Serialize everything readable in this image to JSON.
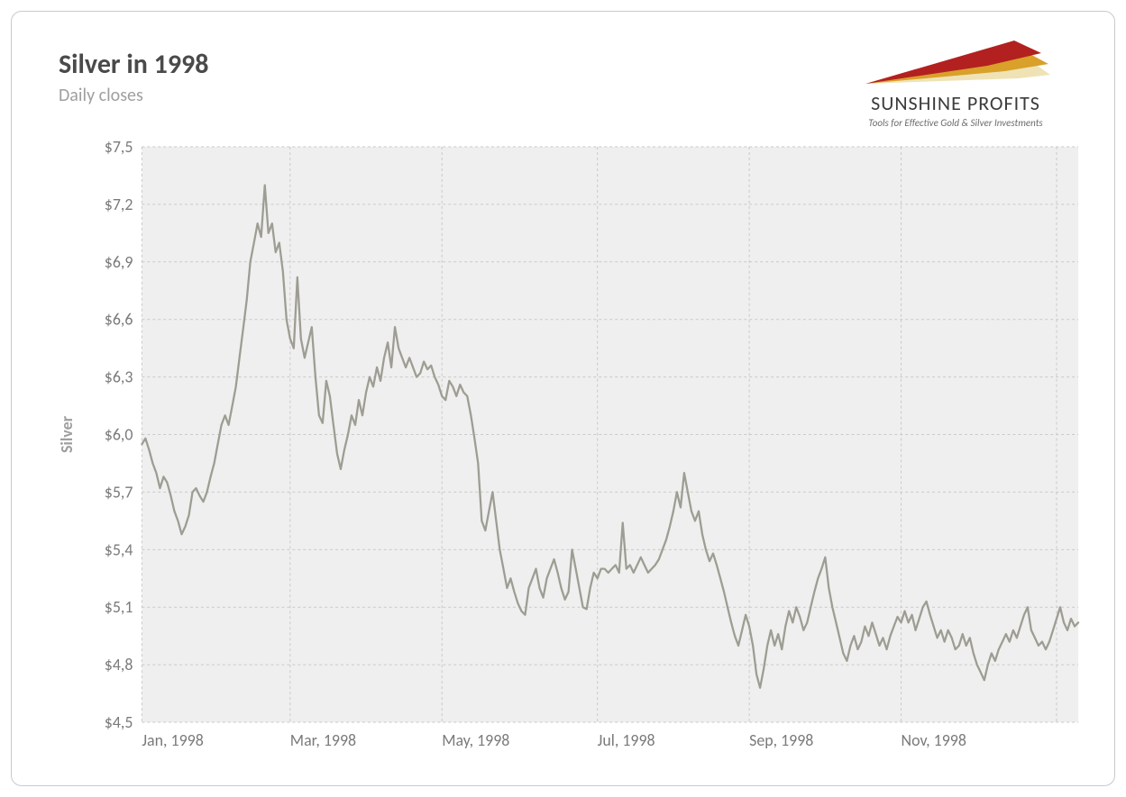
{
  "header": {
    "title": "Silver in 1998",
    "subtitle": "Daily closes"
  },
  "brand": {
    "name": "SUNSHINE PROFITS",
    "tagline": "Tools for Effective Gold & Silver Investments",
    "ray_colors": [
      "#b32020",
      "#d9a02a",
      "#efe3b5"
    ]
  },
  "chart": {
    "type": "line",
    "ylabel": "Silver",
    "line_color": "#9d9d93",
    "line_width": 2.3,
    "plot_background": "#efefef",
    "grid_color": "#c9c9c9",
    "grid_dash": "3,3",
    "axis_text_color": "#7a7a7a",
    "label_color": "#9f9f9f",
    "axis_fontsize": 18,
    "ylim": [
      4.5,
      7.5
    ],
    "ytick_step": 0.3,
    "ytick_labels": [
      "$4,5",
      "$4,8",
      "$5,1",
      "$5,4",
      "$5,7",
      "$6,0",
      "$6,3",
      "$6,6",
      "$6,9",
      "$7,2",
      "$7,5"
    ],
    "xtick_positions": [
      0,
      41,
      83,
      126,
      168,
      210,
      253
    ],
    "xtick_labels": [
      "Jan, 1998",
      "Mar, 1998",
      "May, 1998",
      "Jul, 1998",
      "Sep, 1998",
      "Nov, 1998",
      ""
    ],
    "x_count": 260,
    "values": [
      5.95,
      5.98,
      5.92,
      5.85,
      5.8,
      5.72,
      5.78,
      5.75,
      5.68,
      5.6,
      5.55,
      5.48,
      5.52,
      5.58,
      5.7,
      5.72,
      5.68,
      5.65,
      5.7,
      5.78,
      5.85,
      5.95,
      6.05,
      6.1,
      6.05,
      6.15,
      6.25,
      6.4,
      6.55,
      6.7,
      6.9,
      7.0,
      7.1,
      7.03,
      7.3,
      7.05,
      7.1,
      6.95,
      7.0,
      6.85,
      6.6,
      6.5,
      6.45,
      6.82,
      6.5,
      6.4,
      6.48,
      6.56,
      6.3,
      6.1,
      6.06,
      6.28,
      6.2,
      6.05,
      5.9,
      5.82,
      5.92,
      6.0,
      6.1,
      6.05,
      6.18,
      6.1,
      6.22,
      6.3,
      6.25,
      6.35,
      6.28,
      6.4,
      6.48,
      6.35,
      6.56,
      6.45,
      6.4,
      6.35,
      6.4,
      6.35,
      6.3,
      6.32,
      6.38,
      6.34,
      6.36,
      6.3,
      6.26,
      6.2,
      6.18,
      6.28,
      6.25,
      6.2,
      6.26,
      6.22,
      6.2,
      6.1,
      5.98,
      5.85,
      5.55,
      5.5,
      5.6,
      5.7,
      5.55,
      5.4,
      5.3,
      5.2,
      5.25,
      5.18,
      5.12,
      5.08,
      5.06,
      5.2,
      5.25,
      5.3,
      5.2,
      5.15,
      5.25,
      5.3,
      5.35,
      5.28,
      5.2,
      5.14,
      5.18,
      5.4,
      5.3,
      5.2,
      5.1,
      5.09,
      5.2,
      5.28,
      5.25,
      5.3,
      5.3,
      5.28,
      5.3,
      5.32,
      5.28,
      5.54,
      5.3,
      5.32,
      5.28,
      5.32,
      5.36,
      5.32,
      5.28,
      5.3,
      5.32,
      5.35,
      5.4,
      5.45,
      5.52,
      5.6,
      5.7,
      5.62,
      5.8,
      5.7,
      5.6,
      5.55,
      5.6,
      5.48,
      5.4,
      5.34,
      5.38,
      5.32,
      5.25,
      5.18,
      5.1,
      5.02,
      4.95,
      4.9,
      4.98,
      5.06,
      5.0,
      4.9,
      4.75,
      4.68,
      4.78,
      4.9,
      4.98,
      4.9,
      4.96,
      4.88,
      5.0,
      5.08,
      5.02,
      5.1,
      5.05,
      4.98,
      5.02,
      5.1,
      5.18,
      5.25,
      5.3,
      5.36,
      5.2,
      5.1,
      5.02,
      4.94,
      4.86,
      4.82,
      4.9,
      4.95,
      4.88,
      4.92,
      5.0,
      4.95,
      5.02,
      4.96,
      4.9,
      4.94,
      4.88,
      4.95,
      5.0,
      5.05,
      5.02,
      5.08,
      5.02,
      5.06,
      4.98,
      5.04,
      5.1,
      5.13,
      5.06,
      5.0,
      4.94,
      4.98,
      4.92,
      4.98,
      4.94,
      4.88,
      4.9,
      4.96,
      4.9,
      4.94,
      4.86,
      4.8,
      4.76,
      4.72,
      4.8,
      4.86,
      4.82,
      4.88,
      4.92,
      4.96,
      4.92,
      4.98,
      4.94,
      5.0,
      5.06,
      5.1,
      4.98,
      4.94,
      4.9,
      4.92,
      4.88,
      4.92,
      4.98,
      5.04,
      5.1,
      5.02,
      4.98,
      5.04,
      5.0,
      5.02
    ]
  }
}
